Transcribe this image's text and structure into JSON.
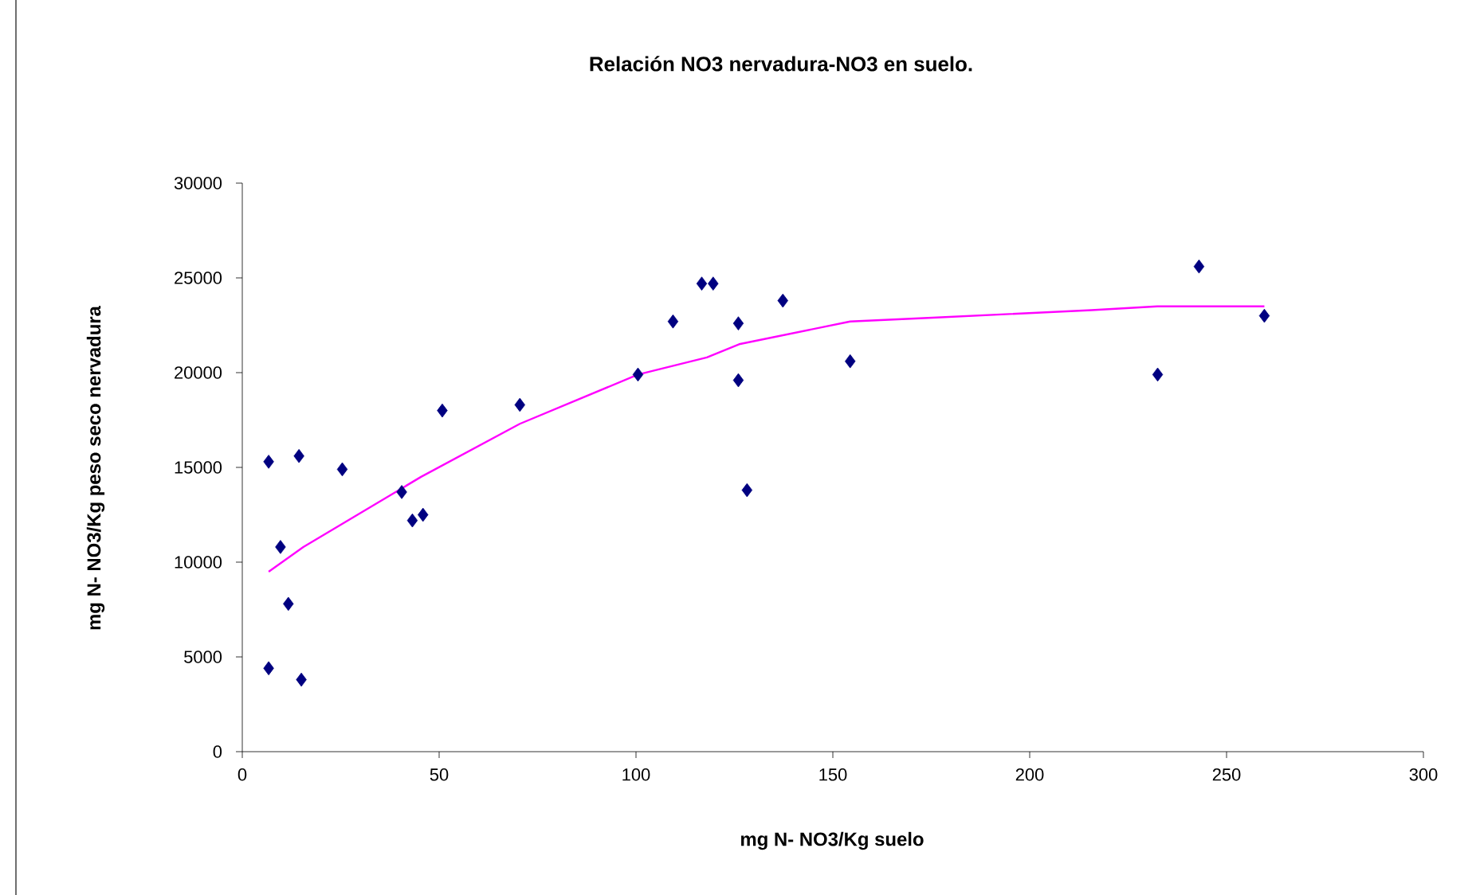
{
  "chart_data": {
    "type": "scatter",
    "title": "Relación NO3 nervadura-NO3 en suelo.",
    "xlabel": "mg N- NO3/Kg suelo",
    "ylabel": "mg N- NO3/Kg peso seco nervadura",
    "xlim": [
      0,
      300
    ],
    "ylim": [
      0,
      30000
    ],
    "xticks": [
      0,
      50,
      100,
      150,
      200,
      250,
      300
    ],
    "yticks": [
      0,
      5000,
      10000,
      15000,
      20000,
      25000,
      30000
    ],
    "marker": "diamond",
    "grid": false,
    "series": [
      {
        "color": "#000080",
        "x": [
          6.7,
          14.4,
          25.4,
          9.7,
          11.7,
          6.7,
          15,
          40.5,
          43.2,
          45.9,
          50.8,
          70.5,
          100.5,
          109.4,
          116.7,
          119.6,
          137.3,
          126,
          126,
          128.2,
          154.4,
          243,
          259.6,
          232.5
        ],
        "values": [
          15300,
          15600,
          14900,
          10800,
          7800,
          4400,
          3800,
          13700,
          12200,
          12500,
          18000,
          18300,
          19900,
          22700,
          24700,
          24700,
          23800,
          22600,
          19600,
          13800,
          20600,
          25600,
          23000,
          19900
        ]
      },
      {
        "type": "line",
        "color": "#ff00ff",
        "marker": "none",
        "x": [
          6.7,
          15.5,
          45.4,
          70.5,
          100.5,
          118,
          126.2,
          154.4,
          175.3,
          215.7,
          232.4,
          259.6
        ],
        "values": [
          9500,
          10800,
          14500,
          17300,
          19900,
          20800,
          21500,
          22700,
          22900,
          23300,
          23500,
          23500
        ]
      }
    ]
  }
}
